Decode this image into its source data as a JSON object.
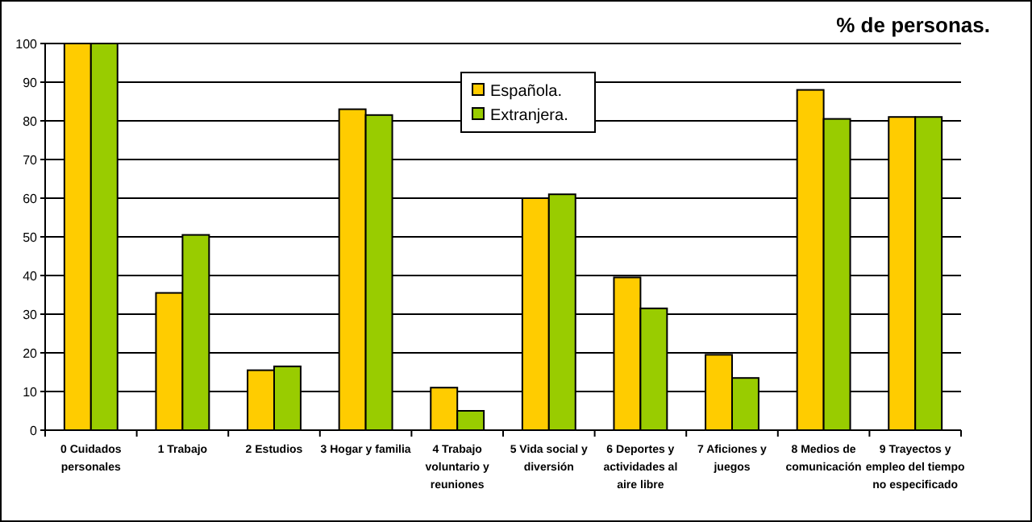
{
  "chart_data": {
    "type": "bar",
    "title": "% de personas.",
    "categories": [
      "0 Cuidados personales",
      "1 Trabajo",
      "2 Estudios",
      "3 Hogar y familia",
      "4 Trabajo voluntario y reuniones",
      "5 Vida social y diversión",
      "6 Deportes y actividades al aire libre",
      "7 Aficiones y juegos",
      "8 Medios de comunicación",
      "9 Trayectos y empleo del tiempo no especificado"
    ],
    "series": [
      {
        "name": "Española.",
        "color": "#ffcc00",
        "values": [
          100,
          35.5,
          15.5,
          83,
          11,
          60,
          39.5,
          19.5,
          88,
          81
        ]
      },
      {
        "name": "Extranjera.",
        "color": "#99cc00",
        "values": [
          100,
          50.5,
          16.5,
          81.5,
          5,
          61,
          31.5,
          13.5,
          80.5,
          81
        ]
      }
    ],
    "ylim": [
      0,
      100
    ],
    "yticks": [
      0,
      10,
      20,
      30,
      40,
      50,
      60,
      70,
      80,
      90,
      100
    ],
    "grid": "y",
    "legend": "top"
  }
}
